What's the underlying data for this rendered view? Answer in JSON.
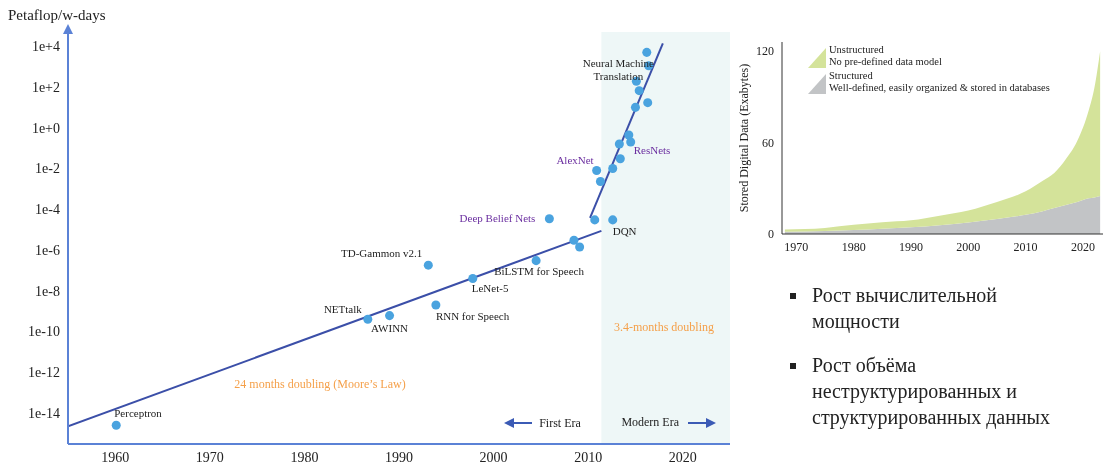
{
  "chart_data": [
    {
      "type": "scatter",
      "ylabel": "Petaflop/w-days",
      "xlim": [
        1955,
        2025
      ],
      "ylim": [
        3e-16,
        50000
      ],
      "xticks": [
        1960,
        1970,
        1980,
        1990,
        2000,
        2010,
        2020
      ],
      "yticks": [
        {
          "value": 1e-14,
          "label": "1e-14"
        },
        {
          "value": 1e-12,
          "label": "1e-12"
        },
        {
          "value": 1e-10,
          "label": "1e-10"
        },
        {
          "value": 1e-08,
          "label": "1e-8"
        },
        {
          "value": 1e-06,
          "label": "1e-6"
        },
        {
          "value": 0.0001,
          "label": "1e-4"
        },
        {
          "value": 0.01,
          "label": "1e-2"
        },
        {
          "value": 1,
          "label": "1e+0"
        },
        {
          "value": 100,
          "label": "1e+2"
        },
        {
          "value": 10000,
          "label": "1e+4"
        }
      ],
      "log": "y",
      "grid": false,
      "legend": false,
      "series": [
        {
          "color": "#4aa3df",
          "marker": "circle",
          "x": [
            1960.1,
            1986.7,
            1989.0,
            1993.1,
            1993.9,
            1997.8,
            2004.5,
            2005.9,
            2008.5,
            2009.1,
            2010.7,
            2010.9,
            2011.3,
            2012.6,
            2012.6,
            2013.3,
            2013.4,
            2014.3,
            2014.5,
            2015.0,
            2015.1,
            2015.4,
            2016.2,
            2016.3,
            2016.4
          ],
          "values": [
            2.5e-15,
            4e-10,
            6e-10,
            1.8e-07,
            2e-09,
            4e-08,
            3e-07,
            3.4e-05,
            3e-06,
            1.4e-06,
            3e-05,
            0.008,
            0.0023,
            3e-05,
            0.01,
            0.16,
            0.03,
            0.44,
            0.2,
            10,
            190,
            66,
            5000,
            17,
            1100
          ]
        },
        {
          "type": "line",
          "color": "#3b4fa8",
          "x": [
            1955,
            2011.4
          ],
          "values": [
            2.2e-15,
            8.7e-06
          ]
        },
        {
          "type": "line",
          "color": "#3b4fa8",
          "x": [
            2010.2,
            2017.9
          ],
          "values": [
            3.8e-05,
            14000
          ]
        }
      ],
      "bands": [
        {
          "axis": "x",
          "from": 2011.4,
          "to": 2025,
          "label": "Modern Era",
          "color": "#eef7f7"
        }
      ],
      "annotations": [
        {
          "text": "Perceptron",
          "x": 1960.1,
          "y": 2.5e-15
        },
        {
          "text": "NETtalk",
          "x": 1986.7,
          "y": 4e-10
        },
        {
          "text": "AWINN",
          "x": 1989.0,
          "y": 6e-10
        },
        {
          "text": "TD-Gammon v2.1",
          "x": 1993.1,
          "y": 1.8e-07
        },
        {
          "text": "RNN for Speech",
          "x": 1993.9,
          "y": 2e-09
        },
        {
          "text": "LeNet-5",
          "x": 1997.8,
          "y": 4e-08
        },
        {
          "text": "BiLSTM for Speech",
          "x": 2004.5,
          "y": 3e-07
        },
        {
          "text": "Deep Belief Nets",
          "x": 2005.9,
          "y": 3.4e-05
        },
        {
          "text": "DQN",
          "x": 2012.6,
          "y": 3e-05
        },
        {
          "text": "AlexNet",
          "x": 2010.9,
          "y": 0.008
        },
        {
          "text": "ResNets",
          "x": 2014.5,
          "y": 0.2
        },
        {
          "text": "Neural Machine\nTranslation",
          "x": 2015.1,
          "y": 190
        },
        "24 months doubling (Moore’s Law)",
        "3.4-months doubling",
        "First Era"
      ]
    },
    {
      "type": "area",
      "stacked": true,
      "ylabel": "Stored Digital Data (Exabytes)",
      "legend": "top left",
      "xlim": [
        1967.5,
        2023.5
      ],
      "ylim": [
        0,
        126
      ],
      "xticks": [
        1970,
        1980,
        1990,
        2000,
        2010,
        2020
      ],
      "yticks": [
        0,
        60,
        120
      ],
      "x": [
        1968,
        1975,
        1980,
        1985,
        1990,
        1995,
        2000,
        2005,
        2010,
        2013,
        2015,
        2017,
        2019,
        2021,
        2022,
        2023
      ],
      "series": [
        {
          "name": "Structured\nWell-defined, easily organized & stored in databases",
          "color": "#c2c4c6",
          "values": [
            1.5,
            2,
            2.6,
            3.4,
            4.4,
            5.8,
            7.5,
            9.8,
            12.6,
            15,
            17,
            19,
            21,
            23.5,
            24,
            25
          ]
        },
        {
          "name": "Unstructured\nNo pre-defined data model",
          "color": "#d4e39a",
          "values": [
            1.5,
            2,
            3.4,
            4.3,
            4.6,
            6.2,
            7.9,
            11.2,
            15.4,
            20,
            23,
            30,
            40,
            57.5,
            72,
            95
          ]
        }
      ]
    },
    {
      "type": "other",
      "annotations": [
        "Рост вычислительной мощности",
        "Рост объёма неструктурированных и структурированных данных"
      ]
    }
  ]
}
